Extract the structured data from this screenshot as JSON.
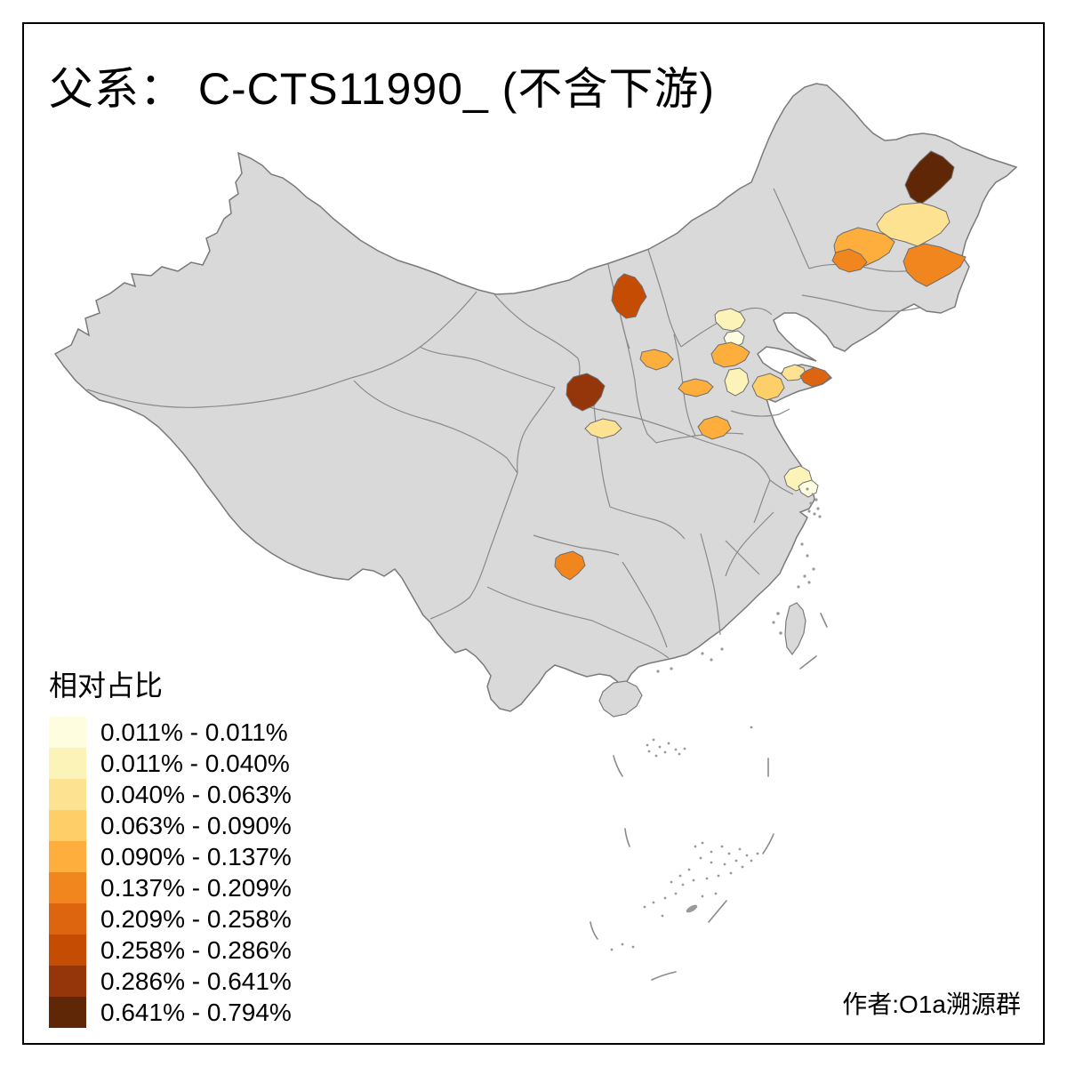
{
  "title": "父系： C-CTS11990_ (不含下游)",
  "attribution": "作者:O1a溯源群",
  "legend": {
    "title": "相对占比",
    "bins": [
      {
        "label": "0.011% - 0.011%",
        "color": "#FFFDE0"
      },
      {
        "label": "0.011% - 0.040%",
        "color": "#FCF3B8"
      },
      {
        "label": "0.040% - 0.063%",
        "color": "#FDE391"
      },
      {
        "label": "0.063% - 0.090%",
        "color": "#FECE68"
      },
      {
        "label": "0.090% - 0.137%",
        "color": "#FDAE3C"
      },
      {
        "label": "0.137% - 0.209%",
        "color": "#F2861E"
      },
      {
        "label": "0.209% - 0.258%",
        "color": "#DD650F"
      },
      {
        "label": "0.258% - 0.286%",
        "color": "#C44C03"
      },
      {
        "label": "0.286% - 0.641%",
        "color": "#94360A"
      },
      {
        "label": "0.641% - 0.794%",
        "color": "#5F2706"
      }
    ]
  },
  "map": {
    "land_color": "#D9D9D9",
    "coast_color": "#7A7A7A",
    "border_color": "#8A8A8A",
    "islet_color": "#9A9A9A",
    "regions": [
      {
        "id": "ne-darkest",
        "bin": 10,
        "bin_label": "0.641% - 0.794%",
        "color": "#5F2706"
      },
      {
        "id": "ne-pale-yellow",
        "bin": 3,
        "bin_label": "0.040% - 0.063%",
        "color": "#FDE391"
      },
      {
        "id": "ne-orange-west",
        "bin": 5,
        "bin_label": "0.090% - 0.137%",
        "color": "#FDAE3C"
      },
      {
        "id": "ne-orange-west-dark",
        "bin": 6,
        "bin_label": "0.137% - 0.209%",
        "color": "#F2861E"
      },
      {
        "id": "ne-orange-east",
        "bin": 6,
        "bin_label": "0.137% - 0.209%",
        "color": "#F2861E"
      },
      {
        "id": "inner-mongolia-burnt",
        "bin": 8,
        "bin_label": "0.258% - 0.286%",
        "color": "#C44C03"
      },
      {
        "id": "beijing-pale",
        "bin": 2,
        "bin_label": "0.011% - 0.040%",
        "color": "#FCF3B8"
      },
      {
        "id": "beijing-south-cream",
        "bin": 1,
        "bin_label": "0.011% - 0.011%",
        "color": "#FFFDE0"
      },
      {
        "id": "shanxi-orange",
        "bin": 5,
        "bin_label": "0.090% - 0.137%",
        "color": "#FDAE3C"
      },
      {
        "id": "hebei-orange-north",
        "bin": 5,
        "bin_label": "0.090% - 0.137%",
        "color": "#FDAE3C"
      },
      {
        "id": "hebei-orange-south",
        "bin": 5,
        "bin_label": "0.090% - 0.137%",
        "color": "#FDAE3C"
      },
      {
        "id": "hebei-pale",
        "bin": 2,
        "bin_label": "0.011% - 0.040%",
        "color": "#FCF3B8"
      },
      {
        "id": "shandong-amber",
        "bin": 4,
        "bin_label": "0.063% - 0.090%",
        "color": "#FECE68"
      },
      {
        "id": "shandong-pen-pale",
        "bin": 3,
        "bin_label": "0.040% - 0.063%",
        "color": "#FDE391"
      },
      {
        "id": "shandong-pen-dark",
        "bin": 7,
        "bin_label": "0.209% - 0.258%",
        "color": "#DD650F"
      },
      {
        "id": "henan-orange",
        "bin": 5,
        "bin_label": "0.090% - 0.137%",
        "color": "#FDAE3C"
      },
      {
        "id": "shaanxi-dark",
        "bin": 9,
        "bin_label": "0.286% - 0.641%",
        "color": "#94360A"
      },
      {
        "id": "shaanxi-pale",
        "bin": 3,
        "bin_label": "0.040% - 0.063%",
        "color": "#FDE391"
      },
      {
        "id": "jiangsu-pale",
        "bin": 2,
        "bin_label": "0.011% - 0.040%",
        "color": "#FCF3B8"
      },
      {
        "id": "jiangsu-cream",
        "bin": 1,
        "bin_label": "0.011% - 0.011%",
        "color": "#FFFDE0"
      },
      {
        "id": "guizhou-orange",
        "bin": 6,
        "bin_label": "0.137% - 0.209%",
        "color": "#F2861E"
      }
    ]
  }
}
